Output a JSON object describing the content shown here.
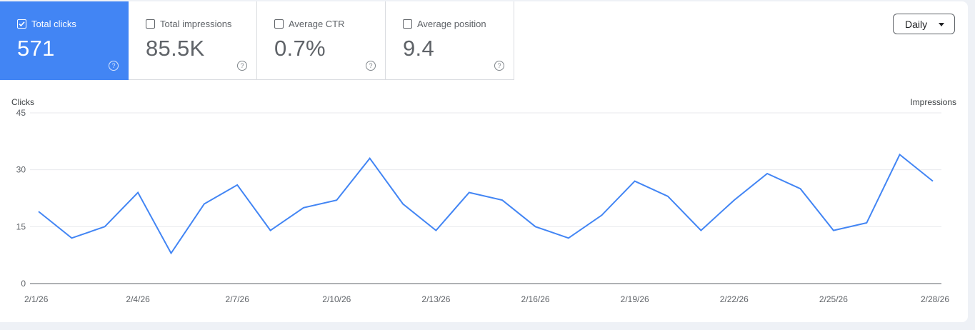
{
  "metrics": [
    {
      "label": "Total clicks",
      "value": "571",
      "checked": true
    },
    {
      "label": "Total impressions",
      "value": "85.5K",
      "checked": false
    },
    {
      "label": "Average CTR",
      "value": "0.7%",
      "checked": false
    },
    {
      "label": "Average position",
      "value": "9.4",
      "checked": false
    }
  ],
  "help_glyph": "?",
  "period_select": {
    "selected": "Daily"
  },
  "colors": {
    "accent": "#4285f4",
    "line": "#4285f4",
    "grid": "#e8eaed",
    "axis": "#5f6368"
  },
  "chart_data": {
    "type": "line",
    "ylabel_left": "Clicks",
    "ylabel_right": "Impressions",
    "ylim": [
      0,
      45
    ],
    "yticks": [
      0,
      15,
      30,
      45
    ],
    "xtick_labels": [
      "2/1/26",
      "2/4/26",
      "2/7/26",
      "2/10/26",
      "2/13/26",
      "2/16/26",
      "2/19/26",
      "2/22/26",
      "2/25/26",
      "2/28/26"
    ],
    "x": [
      "2/1/26",
      "2/2/26",
      "2/3/26",
      "2/4/26",
      "2/5/26",
      "2/6/26",
      "2/7/26",
      "2/8/26",
      "2/9/26",
      "2/10/26",
      "2/11/26",
      "2/12/26",
      "2/13/26",
      "2/14/26",
      "2/15/26",
      "2/16/26",
      "2/17/26",
      "2/18/26",
      "2/19/26",
      "2/20/26",
      "2/21/26",
      "2/22/26",
      "2/23/26",
      "2/24/26",
      "2/25/26",
      "2/26/26",
      "2/27/26",
      "2/28/26"
    ],
    "series": [
      {
        "values": [
          19,
          12,
          15,
          24,
          8,
          21,
          26,
          14,
          20,
          22,
          33,
          21,
          14,
          24,
          22,
          15,
          12,
          18,
          27,
          23,
          14,
          22,
          29,
          25,
          14,
          16,
          34,
          27
        ]
      }
    ],
    "grid": true
  }
}
